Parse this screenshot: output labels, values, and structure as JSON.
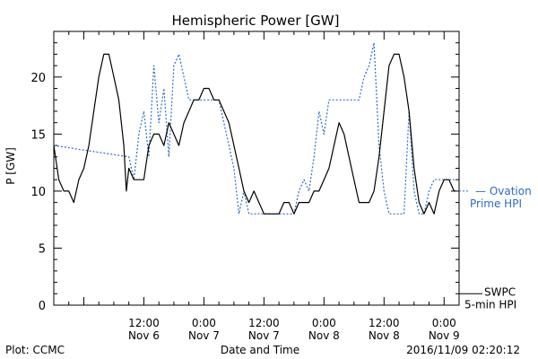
{
  "chart_data": {
    "type": "line",
    "title": "Hemispheric Power [GW]",
    "xlabel": "Date and Time",
    "ylabel": "P [GW]",
    "ylim": [
      0,
      24
    ],
    "xlim": [
      "2016-11-05T18:00",
      "2016-11-09T03:00"
    ],
    "yticks": [
      0,
      5,
      10,
      15,
      20
    ],
    "xticks": [
      {
        "t": "2016-11-06T12:00",
        "line1": "12:00",
        "line2": "Nov 6"
      },
      {
        "t": "2016-11-07T00:00",
        "line1": "0:00",
        "line2": "Nov 7"
      },
      {
        "t": "2016-11-07T12:00",
        "line1": "12:00",
        "line2": "Nov 7"
      },
      {
        "t": "2016-11-08T00:00",
        "line1": "0:00",
        "line2": "Nov 8"
      },
      {
        "t": "2016-11-08T12:00",
        "line1": "12:00",
        "line2": "Nov 8"
      },
      {
        "t": "2016-11-09T00:00",
        "line1": "0:00",
        "line2": "Nov 9"
      }
    ],
    "grid": false,
    "series": [
      {
        "name": "SWPC 5-min HPI",
        "label_line1": "SWPC",
        "label_line2": "5-min HPI",
        "color": "#000000",
        "dashed": false,
        "points": [
          [
            "2016-11-05T18:00",
            14
          ],
          [
            "2016-11-05T19:00",
            11
          ],
          [
            "2016-11-05T20:00",
            10
          ],
          [
            "2016-11-05T21:00",
            10
          ],
          [
            "2016-11-05T22:00",
            9
          ],
          [
            "2016-11-05T23:00",
            11
          ],
          [
            "2016-11-06T00:00",
            12
          ],
          [
            "2016-11-06T01:00",
            14
          ],
          [
            "2016-11-06T02:00",
            17
          ],
          [
            "2016-11-06T03:00",
            20
          ],
          [
            "2016-11-06T04:00",
            22
          ],
          [
            "2016-11-06T05:00",
            22
          ],
          [
            "2016-11-06T06:00",
            20
          ],
          [
            "2016-11-06T07:00",
            18
          ],
          [
            "2016-11-06T08:00",
            14
          ],
          [
            "2016-11-06T08:30",
            10
          ],
          [
            "2016-11-06T09:00",
            12
          ],
          [
            "2016-11-06T10:00",
            11
          ],
          [
            "2016-11-06T11:00",
            11
          ],
          [
            "2016-11-06T12:00",
            11
          ],
          [
            "2016-11-06T13:00",
            14
          ],
          [
            "2016-11-06T14:00",
            15
          ],
          [
            "2016-11-06T15:00",
            15
          ],
          [
            "2016-11-06T16:00",
            14
          ],
          [
            "2016-11-06T17:00",
            16
          ],
          [
            "2016-11-06T18:00",
            15
          ],
          [
            "2016-11-06T19:00",
            14
          ],
          [
            "2016-11-06T20:00",
            16
          ],
          [
            "2016-11-06T21:00",
            17
          ],
          [
            "2016-11-06T22:00",
            18
          ],
          [
            "2016-11-06T23:00",
            18
          ],
          [
            "2016-11-07T00:00",
            19
          ],
          [
            "2016-11-07T01:00",
            19
          ],
          [
            "2016-11-07T02:00",
            18
          ],
          [
            "2016-11-07T03:00",
            18
          ],
          [
            "2016-11-07T04:00",
            17
          ],
          [
            "2016-11-07T05:00",
            16
          ],
          [
            "2016-11-07T06:00",
            14
          ],
          [
            "2016-11-07T07:00",
            12
          ],
          [
            "2016-11-07T08:00",
            10
          ],
          [
            "2016-11-07T09:00",
            9
          ],
          [
            "2016-11-07T10:00",
            10
          ],
          [
            "2016-11-07T11:00",
            9
          ],
          [
            "2016-11-07T12:00",
            8
          ],
          [
            "2016-11-07T13:00",
            8
          ],
          [
            "2016-11-07T14:00",
            8
          ],
          [
            "2016-11-07T15:00",
            8
          ],
          [
            "2016-11-07T16:00",
            9
          ],
          [
            "2016-11-07T17:00",
            9
          ],
          [
            "2016-11-07T18:00",
            8
          ],
          [
            "2016-11-07T19:00",
            9
          ],
          [
            "2016-11-07T20:00",
            9
          ],
          [
            "2016-11-07T21:00",
            9
          ],
          [
            "2016-11-07T22:00",
            10
          ],
          [
            "2016-11-07T23:00",
            10
          ],
          [
            "2016-11-08T00:00",
            11
          ],
          [
            "2016-11-08T01:00",
            12
          ],
          [
            "2016-11-08T02:00",
            14
          ],
          [
            "2016-11-08T03:00",
            16
          ],
          [
            "2016-11-08T04:00",
            15
          ],
          [
            "2016-11-08T05:00",
            13
          ],
          [
            "2016-11-08T06:00",
            11
          ],
          [
            "2016-11-08T07:00",
            9
          ],
          [
            "2016-11-08T08:00",
            9
          ],
          [
            "2016-11-08T09:00",
            9
          ],
          [
            "2016-11-08T10:00",
            10
          ],
          [
            "2016-11-08T11:00",
            13
          ],
          [
            "2016-11-08T12:00",
            17
          ],
          [
            "2016-11-08T13:00",
            21
          ],
          [
            "2016-11-08T14:00",
            22
          ],
          [
            "2016-11-08T15:00",
            22
          ],
          [
            "2016-11-08T16:00",
            20
          ],
          [
            "2016-11-08T17:00",
            17
          ],
          [
            "2016-11-08T18:00",
            12
          ],
          [
            "2016-11-08T19:00",
            9
          ],
          [
            "2016-11-08T20:00",
            8
          ],
          [
            "2016-11-08T21:00",
            9
          ],
          [
            "2016-11-08T22:00",
            8
          ],
          [
            "2016-11-08T23:00",
            10
          ],
          [
            "2016-11-09T00:00",
            11
          ],
          [
            "2016-11-09T01:00",
            11
          ],
          [
            "2016-11-09T02:00",
            10
          ],
          [
            "2016-11-09T02:20",
            10
          ]
        ]
      },
      {
        "name": "Ovation Prime HPI",
        "label_line1": "— Ovation",
        "label_line2": "Prime HPI",
        "color": "#2b6cc4",
        "dashed": true,
        "points": [
          [
            "2016-11-05T18:00",
            14
          ],
          [
            "2016-11-06T09:00",
            13
          ],
          [
            "2016-11-06T10:00",
            11
          ],
          [
            "2016-11-06T11:00",
            15
          ],
          [
            "2016-11-06T12:00",
            17
          ],
          [
            "2016-11-06T13:00",
            13
          ],
          [
            "2016-11-06T14:00",
            21
          ],
          [
            "2016-11-06T15:00",
            16
          ],
          [
            "2016-11-06T16:00",
            19
          ],
          [
            "2016-11-06T17:00",
            13
          ],
          [
            "2016-11-06T18:00",
            21
          ],
          [
            "2016-11-06T19:00",
            22
          ],
          [
            "2016-11-06T20:00",
            20
          ],
          [
            "2016-11-06T21:00",
            18
          ],
          [
            "2016-11-06T22:00",
            18
          ],
          [
            "2016-11-07T00:00",
            18
          ],
          [
            "2016-11-07T03:00",
            18
          ],
          [
            "2016-11-07T04:00",
            16
          ],
          [
            "2016-11-07T05:00",
            14
          ],
          [
            "2016-11-07T06:00",
            12
          ],
          [
            "2016-11-07T07:00",
            8
          ],
          [
            "2016-11-07T08:00",
            10
          ],
          [
            "2016-11-07T09:00",
            8
          ],
          [
            "2016-11-07T12:00",
            8
          ],
          [
            "2016-11-07T18:00",
            8
          ],
          [
            "2016-11-07T19:00",
            10
          ],
          [
            "2016-11-07T20:00",
            11
          ],
          [
            "2016-11-07T21:00",
            10
          ],
          [
            "2016-11-07T22:00",
            13
          ],
          [
            "2016-11-07T23:00",
            17
          ],
          [
            "2016-11-08T00:00",
            15
          ],
          [
            "2016-11-08T01:00",
            18
          ],
          [
            "2016-11-08T06:00",
            18
          ],
          [
            "2016-11-08T07:00",
            18
          ],
          [
            "2016-11-08T08:00",
            20
          ],
          [
            "2016-11-08T09:00",
            21
          ],
          [
            "2016-11-08T10:00",
            23
          ],
          [
            "2016-11-08T11:00",
            14
          ],
          [
            "2016-11-08T12:00",
            10
          ],
          [
            "2016-11-08T13:00",
            8
          ],
          [
            "2016-11-08T16:00",
            8
          ],
          [
            "2016-11-08T17:00",
            17
          ],
          [
            "2016-11-08T18:00",
            10
          ],
          [
            "2016-11-08T19:00",
            8
          ],
          [
            "2016-11-08T20:00",
            8
          ],
          [
            "2016-11-08T21:00",
            10
          ],
          [
            "2016-11-08T22:00",
            11
          ],
          [
            "2016-11-09T00:00",
            11
          ],
          [
            "2016-11-09T02:20",
            11
          ]
        ]
      }
    ]
  },
  "footer": {
    "left": "Plot: CCMC",
    "center": "Date and Time",
    "right": "2016/11/09 02:20:12"
  }
}
